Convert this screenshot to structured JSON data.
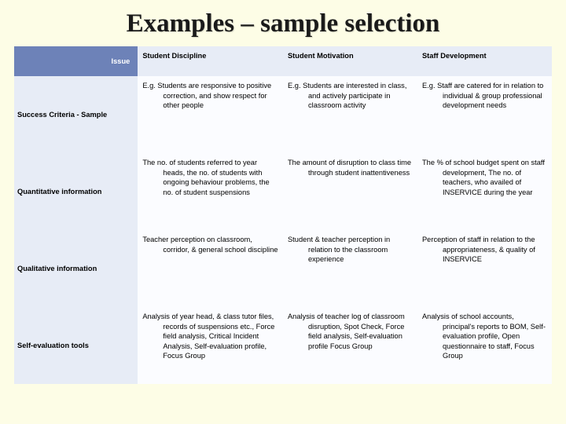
{
  "title": "Examples – sample selection",
  "colors": {
    "page_bg": "#fdfde6",
    "header_bg": "#6d82b8",
    "header_fg": "#ffffff",
    "shade_bg": "#e7ecf6",
    "cell_bg": "#fbfcff",
    "text": "#000000"
  },
  "typography": {
    "title_family": "Times New Roman",
    "title_fontsize_pt": 25,
    "title_weight": "bold",
    "body_family": "Verdana",
    "body_fontsize_pt": 7,
    "header_weight": "bold"
  },
  "table": {
    "type": "table",
    "corner_label": "Issue",
    "columns": [
      "Student Discipline",
      "Student Motivation",
      "Staff Development"
    ],
    "col_widths_pct": [
      23,
      27,
      25,
      25
    ],
    "rows": [
      {
        "label": "Success Criteria - Sample",
        "cells": [
          "E.g. Students are responsive to positive correction, and show respect for other people",
          "E.g. Students are interested in class, and actively participate in classroom activity",
          "E.g. Staff are catered for in relation to individual & group professional development needs"
        ]
      },
      {
        "label": "Quantitative information",
        "cells": [
          "The no. of students referred to year heads, the no. of students with ongoing behaviour problems, the no. of student suspensions",
          "The amount of disruption to class time through student inattentiveness",
          "The % of school budget spent on staff development, The no. of teachers, who availed of INSERVICE during the year"
        ]
      },
      {
        "label": "Qualitative information",
        "cells": [
          "Teacher perception on classroom, corridor, & general school discipline",
          "Student & teacher perception in relation to the classroom experience",
          "Perception of staff in relation to the appropriateness, & quality of INSERVICE"
        ]
      },
      {
        "label": "Self-evaluation tools",
        "cells": [
          "Analysis of year head, & class tutor files, records of suspensions etc., Force field analysis, Critical Incident Analysis, Self-evaluation profile, Focus Group",
          "Analysis of teacher log of classroom disruption, Spot Check, Force field analysis, Self-evaluation profile Focus Group",
          "Analysis of school accounts, principal's reports to BOM, Self-evaluation profile, Open questionnaire to staff, Focus Group"
        ]
      }
    ]
  }
}
